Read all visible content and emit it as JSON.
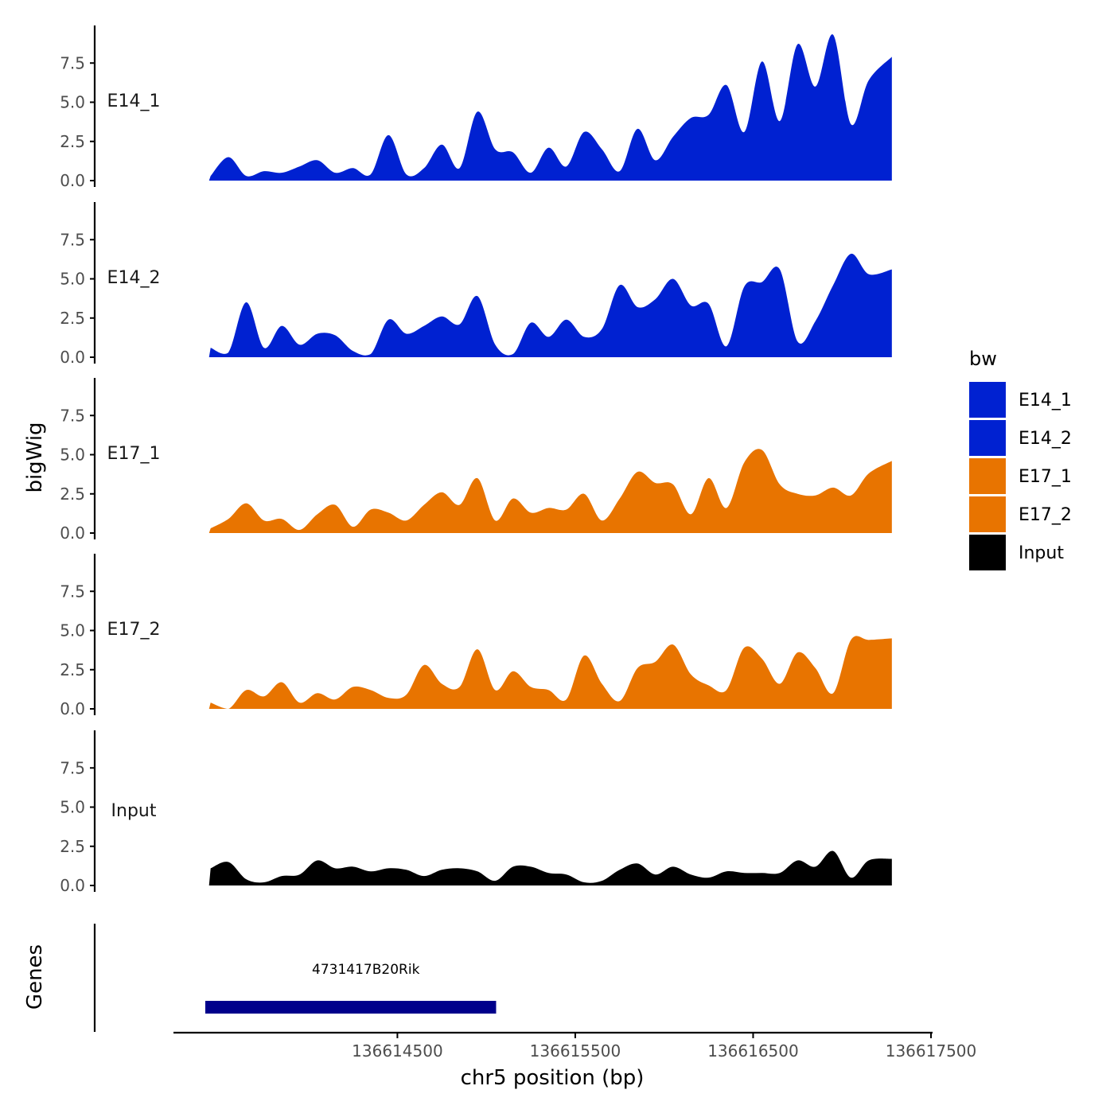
{
  "chart_data": {
    "type": "area",
    "x_axis": {
      "label": "chr5 position (bp)",
      "range": [
        136613250,
        136617500
      ],
      "ticks": [
        136614500,
        136615500,
        136616500,
        136617500
      ],
      "tick_labels": [
        "136614500",
        "136615500",
        "136616500",
        "136617500"
      ]
    },
    "y_axis": {
      "label": "bigWig",
      "range": [
        0,
        10
      ],
      "ticks": [
        0,
        2.5,
        5,
        7.5
      ],
      "tick_labels": [
        "0.0",
        "2.5",
        "5.0",
        "7.5"
      ]
    },
    "legend": {
      "title": "bw",
      "position": "right",
      "items": [
        {
          "label": "E14_1",
          "color": "#0021D1"
        },
        {
          "label": "E14_2",
          "color": "#0021D1"
        },
        {
          "label": "E17_1",
          "color": "#E87400"
        },
        {
          "label": "E17_2",
          "color": "#E87400"
        },
        {
          "label": "Input",
          "color": "#000000"
        }
      ]
    },
    "x_track": [
      136613450,
      136613550,
      136613650,
      136613750,
      136613850,
      136613950,
      136614050,
      136614150,
      136614250,
      136614350,
      136614450,
      136614550,
      136614650,
      136614750,
      136614850,
      136614950,
      136615050,
      136615150,
      136615250,
      136615350,
      136615450,
      136615550,
      136615650,
      136615750,
      136615850,
      136615950,
      136616050,
      136616150,
      136616250,
      136616350,
      136616450,
      136616550,
      136616650,
      136616750,
      136616850,
      136616950,
      136617050,
      136617150,
      136617280
    ],
    "series": [
      {
        "name": "E14_1",
        "label": "E14_1",
        "color": "#0021D1",
        "values": [
          0.3,
          1.5,
          0.3,
          0.6,
          0.5,
          0.9,
          1.3,
          0.5,
          0.8,
          0.4,
          2.9,
          0.4,
          0.8,
          2.3,
          0.8,
          4.4,
          2.0,
          1.8,
          0.5,
          2.1,
          0.9,
          3.1,
          2.0,
          0.6,
          3.3,
          1.3,
          2.8,
          4.0,
          4.2,
          6.1,
          3.1,
          7.6,
          3.8,
          8.7,
          6.0,
          9.3,
          3.6,
          6.4,
          7.9
        ]
      },
      {
        "name": "E14_2",
        "label": "E14_2",
        "color": "#0021D1",
        "values": [
          0.6,
          0.3,
          3.5,
          0.6,
          2.0,
          0.8,
          1.5,
          1.4,
          0.4,
          0.2,
          2.4,
          1.5,
          2.0,
          2.6,
          2.1,
          3.9,
          0.8,
          0.2,
          2.2,
          1.3,
          2.4,
          1.3,
          1.8,
          4.6,
          3.2,
          3.7,
          5.0,
          3.3,
          3.4,
          0.7,
          4.5,
          4.8,
          5.6,
          1.0,
          2.3,
          4.6,
          6.6,
          5.3,
          5.6
        ]
      },
      {
        "name": "E17_1",
        "label": "E17_1",
        "color": "#E87400",
        "values": [
          0.3,
          0.9,
          1.9,
          0.8,
          0.9,
          0.2,
          1.2,
          1.8,
          0.4,
          1.5,
          1.3,
          0.8,
          1.8,
          2.6,
          1.8,
          3.5,
          0.8,
          2.2,
          1.3,
          1.6,
          1.5,
          2.5,
          0.8,
          2.2,
          3.9,
          3.2,
          3.1,
          1.2,
          3.5,
          1.6,
          4.5,
          5.3,
          3.1,
          2.5,
          2.4,
          2.9,
          2.4,
          3.8,
          4.6
        ]
      },
      {
        "name": "E17_2",
        "label": "E17_2",
        "color": "#E87400",
        "values": [
          0.4,
          0.0,
          1.2,
          0.8,
          1.7,
          0.4,
          1.0,
          0.6,
          1.4,
          1.2,
          0.7,
          0.9,
          2.8,
          1.6,
          1.4,
          3.8,
          1.2,
          2.4,
          1.4,
          1.2,
          0.6,
          3.4,
          1.6,
          0.5,
          2.6,
          3.0,
          4.1,
          2.2,
          1.5,
          1.2,
          3.9,
          3.2,
          1.6,
          3.6,
          2.6,
          1.0,
          4.4,
          4.4,
          4.5
        ]
      },
      {
        "name": "Input",
        "label": "Input",
        "color": "#000000",
        "values": [
          1.1,
          1.5,
          0.4,
          0.2,
          0.6,
          0.7,
          1.6,
          1.1,
          1.2,
          0.9,
          1.1,
          1.0,
          0.6,
          1.0,
          1.1,
          0.9,
          0.3,
          1.2,
          1.2,
          0.8,
          0.7,
          0.2,
          0.3,
          1.0,
          1.4,
          0.7,
          1.2,
          0.7,
          0.5,
          0.9,
          0.8,
          0.8,
          0.8,
          1.6,
          1.2,
          2.2,
          0.5,
          1.6,
          1.7
        ]
      }
    ],
    "genes_track": {
      "label": "Genes",
      "genes": [
        {
          "name": "4731417B20Rik",
          "start": 136613420,
          "end": 136615055,
          "color": "#00008B"
        }
      ]
    }
  }
}
